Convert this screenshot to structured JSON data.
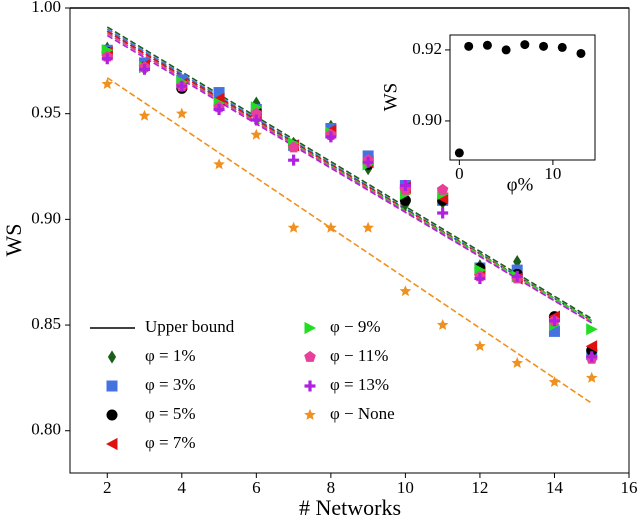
{
  "chart_data": {
    "type": "scatter",
    "xlabel": "# Networks",
    "ylabel": "WS",
    "x": [
      2,
      3,
      4,
      5,
      6,
      7,
      8,
      9,
      10,
      11,
      12,
      13,
      14,
      15
    ],
    "xlim": [
      1,
      16
    ],
    "xticks": [
      2,
      4,
      6,
      8,
      10,
      12,
      14,
      16
    ],
    "ylim": [
      0.78,
      1.0
    ],
    "yticks": [
      {
        "value": 0.8,
        "label": "0.80"
      },
      {
        "value": 0.85,
        "label": "0.85"
      },
      {
        "value": 0.9,
        "label": "0.90"
      },
      {
        "value": 0.95,
        "label": "0.95"
      },
      {
        "value": 1.0,
        "label": "1.00"
      }
    ],
    "upper_bound": {
      "name": "Upper bound",
      "color": "#000000",
      "value": 1.0
    },
    "series": [
      {
        "name": "φ =  1%",
        "color": "#1a5e1a",
        "marker": "diamond",
        "values": [
          0.981,
          0.973,
          0.963,
          0.955,
          0.955,
          0.936,
          0.944,
          0.924,
          0.907,
          0.908,
          0.878,
          0.88,
          0.853,
          0.838
        ],
        "fit": [
          0.991,
          0.853
        ]
      },
      {
        "name": "φ =  3%",
        "color": "#4472e0",
        "marker": "square",
        "values": [
          0.98,
          0.974,
          0.966,
          0.96,
          0.952,
          0.935,
          0.943,
          0.93,
          0.916,
          0.909,
          0.877,
          0.876,
          0.847,
          0.836
        ],
        "fit": [
          0.99,
          0.852
        ]
      },
      {
        "name": "φ =  5%",
        "color": "#000000",
        "marker": "circle",
        "values": [
          0.979,
          0.972,
          0.962,
          0.954,
          0.951,
          0.935,
          0.94,
          0.926,
          0.909,
          0.909,
          0.877,
          0.874,
          0.854,
          0.838
        ],
        "fit": [
          0.989,
          0.852
        ]
      },
      {
        "name": "φ =  7%",
        "color": "#e01010",
        "marker": "triangle-left",
        "values": [
          0.979,
          0.973,
          0.964,
          0.957,
          0.949,
          0.935,
          0.942,
          0.927,
          0.915,
          0.91,
          0.874,
          0.872,
          0.854,
          0.84
        ],
        "fit": [
          0.989,
          0.852
        ]
      },
      {
        "name": "φ −  9%",
        "color": "#22dd22",
        "marker": "triangle-right",
        "values": [
          0.98,
          0.972,
          0.965,
          0.955,
          0.953,
          0.936,
          0.941,
          0.926,
          0.912,
          0.912,
          0.876,
          0.873,
          0.85,
          0.848
        ],
        "fit": [
          0.988,
          0.852
        ]
      },
      {
        "name": "φ −  11%",
        "color": "#e8409a",
        "marker": "pentagon",
        "values": [
          0.977,
          0.972,
          0.963,
          0.953,
          0.95,
          0.934,
          0.94,
          0.928,
          0.914,
          0.914,
          0.873,
          0.872,
          0.852,
          0.834
        ],
        "fit": [
          0.988,
          0.851
        ]
      },
      {
        "name": "φ =  13%",
        "color": "#b020e0",
        "marker": "plus",
        "values": [
          0.976,
          0.971,
          0.963,
          0.952,
          0.947,
          0.928,
          0.939,
          0.927,
          0.916,
          0.903,
          0.872,
          0.873,
          0.852,
          0.835
        ],
        "fit": [
          0.987,
          0.851
        ]
      },
      {
        "name": "φ − None",
        "color": "#f0901e",
        "marker": "star",
        "values": [
          0.964,
          0.949,
          0.95,
          0.926,
          0.94,
          0.896,
          0.896,
          0.896,
          0.866,
          0.85,
          0.84,
          0.832,
          0.823,
          0.825
        ],
        "fit": [
          0.967,
          0.813
        ]
      }
    ],
    "inset": {
      "type": "scatter",
      "xlabel": "φ%",
      "ylabel": "WS",
      "color": "#000000",
      "x": [
        0,
        1,
        3,
        5,
        7,
        9,
        11,
        13
      ],
      "values": [
        0.891,
        0.921,
        0.9213,
        0.92,
        0.9215,
        0.921,
        0.9207,
        0.919
      ],
      "xlim": [
        -1,
        14.5
      ],
      "xticks": [
        0,
        10
      ],
      "ylim": [
        0.889,
        0.9242
      ],
      "yticks": [
        {
          "value": 0.9,
          "label": "0.90"
        },
        {
          "value": 0.92,
          "label": "0.92"
        }
      ]
    }
  }
}
